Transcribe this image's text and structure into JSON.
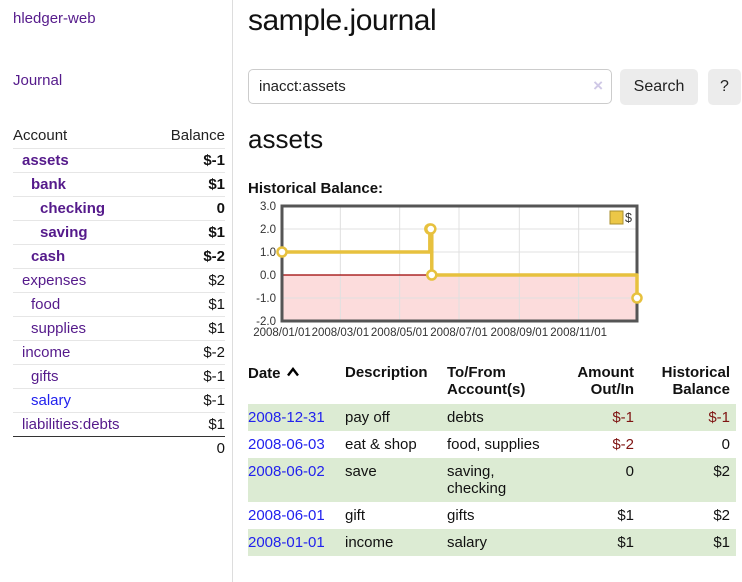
{
  "sidebar": {
    "brand": "hledger-web",
    "journal_link": "Journal",
    "accounts_table": {
      "headers": [
        "Account",
        "Balance"
      ],
      "rows": [
        {
          "name": "assets",
          "level": 1,
          "bold": true,
          "balance": "$-1",
          "balance_color": "negative"
        },
        {
          "name": "bank",
          "level": 2,
          "bold": true,
          "balance": "$1"
        },
        {
          "name": "checking",
          "level": 3,
          "bold": true,
          "balance": "0"
        },
        {
          "name": "saving",
          "level": 3,
          "bold": true,
          "balance": "$1"
        },
        {
          "name": "cash",
          "level": 2,
          "bold": true,
          "balance": "$-2",
          "balance_color": "negative"
        },
        {
          "name": "expenses",
          "level": 1,
          "bold": false,
          "balance": "$2"
        },
        {
          "name": "food",
          "level": 2,
          "bold": false,
          "balance": "$1"
        },
        {
          "name": "supplies",
          "level": 2,
          "bold": false,
          "balance": "$1"
        },
        {
          "name": "income",
          "level": 1,
          "bold": false,
          "balance": "$-2",
          "balance_color": "dim-negative"
        },
        {
          "name": "gifts",
          "level": 2,
          "bold": false,
          "balance": "$-1",
          "balance_color": "dim-negative"
        },
        {
          "name": "salary",
          "level": 2,
          "bold": false,
          "link_color": "blue",
          "balance": "$-1",
          "balance_color": "dim-negative"
        },
        {
          "name": "liabilities:debts",
          "level": 1,
          "bold": false,
          "balance": "$1"
        }
      ],
      "total": "0"
    }
  },
  "header": {
    "title": "sample.journal"
  },
  "search": {
    "query": "inacct:assets",
    "clear_icon": "×",
    "button_label": "Search",
    "help_label": "?"
  },
  "account_page": {
    "heading": "assets",
    "chart_label": "Historical Balance:"
  },
  "chart_data": {
    "type": "line",
    "title": "Historical Balance:",
    "series": [
      {
        "name": "$",
        "step": true,
        "points": [
          [
            "2008-01-01",
            1
          ],
          [
            "2008-06-01",
            2
          ],
          [
            "2008-06-02",
            2
          ],
          [
            "2008-06-03",
            0
          ],
          [
            "2008-12-31",
            -1
          ]
        ]
      }
    ],
    "x_range": [
      "2008-01-01",
      "2008-12-31"
    ],
    "x_ticks": [
      "2008/01/01",
      "2008/03/01",
      "2008/05/01",
      "2008/07/01",
      "2008/09/01",
      "2008/11/01"
    ],
    "y_ticks": [
      3.0,
      2.0,
      1.0,
      0.0,
      -1.0,
      -2.0
    ],
    "ylim": [
      -2,
      3
    ],
    "legend": "$",
    "legend_position": "top-right",
    "grid": true,
    "colors": {
      "line": "#e7c13e",
      "marker_fill": "#ffffff",
      "legend_fill": "#ecc747",
      "negative_fill": "#fcdcdc",
      "zero_line": "#9b0000",
      "border": "#555555",
      "gridline": "#e0e0e0"
    }
  },
  "register": {
    "headers": [
      "Date",
      "Description",
      "To/From Account(s)",
      "Amount Out/In",
      "Historical Balance"
    ],
    "transactions": [
      {
        "date": "2008-12-31",
        "description": "pay off",
        "accounts": "debts",
        "amount": "$-1",
        "amount_color": "negative",
        "balance": "$-1",
        "balance_color": "negative",
        "shaded": true
      },
      {
        "date": "2008-06-03",
        "description": "eat & shop",
        "accounts": "food, supplies",
        "amount": "$-2",
        "amount_color": "negative",
        "balance": "0",
        "shaded": false
      },
      {
        "date": "2008-06-02",
        "description": "save",
        "accounts": "saving, checking",
        "amount": "0",
        "balance": "$2",
        "shaded": true
      },
      {
        "date": "2008-06-01",
        "description": "gift",
        "accounts": "gifts",
        "amount": "$1",
        "balance": "$2",
        "shaded": false
      },
      {
        "date": "2008-01-01",
        "description": "income",
        "accounts": "salary",
        "amount": "$1",
        "balance": "$1",
        "shaded": true
      }
    ]
  }
}
